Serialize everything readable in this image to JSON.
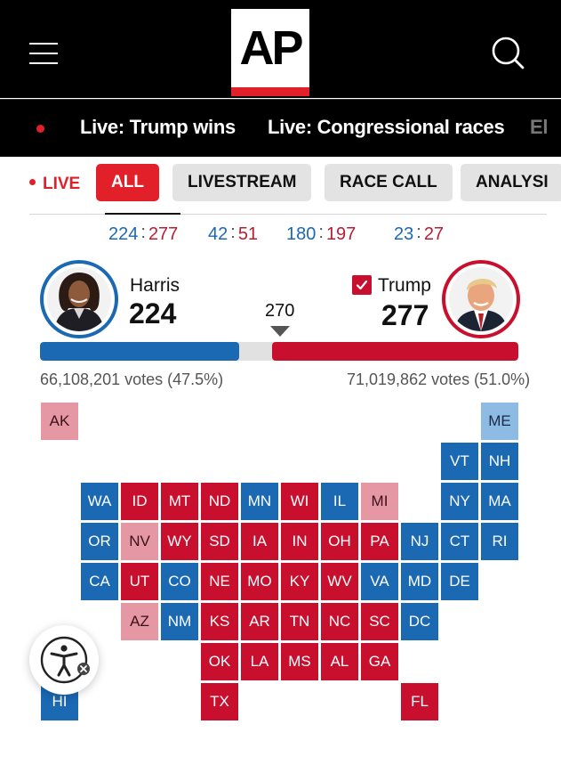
{
  "header": {
    "logo_text": "AP"
  },
  "live_links": [
    {
      "label": "Live: Trump wins"
    },
    {
      "label": "Live: Congressional races"
    },
    {
      "label": "El"
    }
  ],
  "tabs": {
    "live_label": "LIVE",
    "items": [
      {
        "label": "ALL",
        "active": true
      },
      {
        "label": "LIVESTREAM"
      },
      {
        "label": "RACE CALL"
      },
      {
        "label": "ANALYSI"
      }
    ]
  },
  "tallies": [
    {
      "d": "224",
      "r": "277"
    },
    {
      "d": "42",
      "r": "51"
    },
    {
      "d": "180",
      "r": "197"
    },
    {
      "d": "23",
      "r": "27"
    }
  ],
  "colors": {
    "dem": "#1b68b3",
    "rep": "#c8102e",
    "lean_dem": "#8dbbe3",
    "lean_rep": "#e697a4",
    "accent": "#e2202a"
  },
  "race": {
    "threshold": "270",
    "total_ev": 538,
    "harris": {
      "name": "Harris",
      "ev": "224",
      "votes": "66,108,201 votes (47.5%)"
    },
    "trump": {
      "name": "Trump",
      "ev": "277",
      "votes": "71,019,862 votes (51.0%)",
      "winner": true
    }
  },
  "states": [
    {
      "abbr": "AK",
      "party": "lr",
      "row": 0,
      "col": 0
    },
    {
      "abbr": "ME",
      "party": "ld",
      "row": 0,
      "col": 11
    },
    {
      "abbr": "VT",
      "party": "d",
      "row": 1,
      "col": 10
    },
    {
      "abbr": "NH",
      "party": "d",
      "row": 1,
      "col": 11
    },
    {
      "abbr": "WA",
      "party": "d",
      "row": 2,
      "col": 1
    },
    {
      "abbr": "ID",
      "party": "r",
      "row": 2,
      "col": 2
    },
    {
      "abbr": "MT",
      "party": "r",
      "row": 2,
      "col": 3
    },
    {
      "abbr": "ND",
      "party": "r",
      "row": 2,
      "col": 4
    },
    {
      "abbr": "MN",
      "party": "d",
      "row": 2,
      "col": 5
    },
    {
      "abbr": "WI",
      "party": "r",
      "row": 2,
      "col": 6
    },
    {
      "abbr": "IL",
      "party": "d",
      "row": 2,
      "col": 7
    },
    {
      "abbr": "MI",
      "party": "lr",
      "row": 2,
      "col": 8
    },
    {
      "abbr": "NY",
      "party": "d",
      "row": 2,
      "col": 10
    },
    {
      "abbr": "MA",
      "party": "d",
      "row": 2,
      "col": 11
    },
    {
      "abbr": "OR",
      "party": "d",
      "row": 3,
      "col": 1
    },
    {
      "abbr": "NV",
      "party": "lr",
      "row": 3,
      "col": 2
    },
    {
      "abbr": "WY",
      "party": "r",
      "row": 3,
      "col": 3
    },
    {
      "abbr": "SD",
      "party": "r",
      "row": 3,
      "col": 4
    },
    {
      "abbr": "IA",
      "party": "r",
      "row": 3,
      "col": 5
    },
    {
      "abbr": "IN",
      "party": "r",
      "row": 3,
      "col": 6
    },
    {
      "abbr": "OH",
      "party": "r",
      "row": 3,
      "col": 7
    },
    {
      "abbr": "PA",
      "party": "r",
      "row": 3,
      "col": 8
    },
    {
      "abbr": "NJ",
      "party": "d",
      "row": 3,
      "col": 9
    },
    {
      "abbr": "CT",
      "party": "d",
      "row": 3,
      "col": 10
    },
    {
      "abbr": "RI",
      "party": "d",
      "row": 3,
      "col": 11
    },
    {
      "abbr": "CA",
      "party": "d",
      "row": 4,
      "col": 1
    },
    {
      "abbr": "UT",
      "party": "r",
      "row": 4,
      "col": 2
    },
    {
      "abbr": "CO",
      "party": "d",
      "row": 4,
      "col": 3
    },
    {
      "abbr": "NE",
      "party": "r",
      "row": 4,
      "col": 4
    },
    {
      "abbr": "MO",
      "party": "r",
      "row": 4,
      "col": 5
    },
    {
      "abbr": "KY",
      "party": "r",
      "row": 4,
      "col": 6
    },
    {
      "abbr": "WV",
      "party": "r",
      "row": 4,
      "col": 7
    },
    {
      "abbr": "VA",
      "party": "d",
      "row": 4,
      "col": 8
    },
    {
      "abbr": "MD",
      "party": "d",
      "row": 4,
      "col": 9
    },
    {
      "abbr": "DE",
      "party": "d",
      "row": 4,
      "col": 10
    },
    {
      "abbr": "AZ",
      "party": "lr",
      "row": 5,
      "col": 2
    },
    {
      "abbr": "NM",
      "party": "d",
      "row": 5,
      "col": 3
    },
    {
      "abbr": "KS",
      "party": "r",
      "row": 5,
      "col": 4
    },
    {
      "abbr": "AR",
      "party": "r",
      "row": 5,
      "col": 5
    },
    {
      "abbr": "TN",
      "party": "r",
      "row": 5,
      "col": 6
    },
    {
      "abbr": "NC",
      "party": "r",
      "row": 5,
      "col": 7
    },
    {
      "abbr": "SC",
      "party": "r",
      "row": 5,
      "col": 8
    },
    {
      "abbr": "DC",
      "party": "d",
      "row": 5,
      "col": 9
    },
    {
      "abbr": "OK",
      "party": "r",
      "row": 6,
      "col": 4
    },
    {
      "abbr": "LA",
      "party": "r",
      "row": 6,
      "col": 5
    },
    {
      "abbr": "MS",
      "party": "r",
      "row": 6,
      "col": 6
    },
    {
      "abbr": "AL",
      "party": "r",
      "row": 6,
      "col": 7
    },
    {
      "abbr": "GA",
      "party": "r",
      "row": 6,
      "col": 8
    },
    {
      "abbr": "HI",
      "party": "d",
      "row": 7,
      "col": 0
    },
    {
      "abbr": "TX",
      "party": "r",
      "row": 7,
      "col": 4
    },
    {
      "abbr": "FL",
      "party": "r",
      "row": 7,
      "col": 9
    }
  ]
}
